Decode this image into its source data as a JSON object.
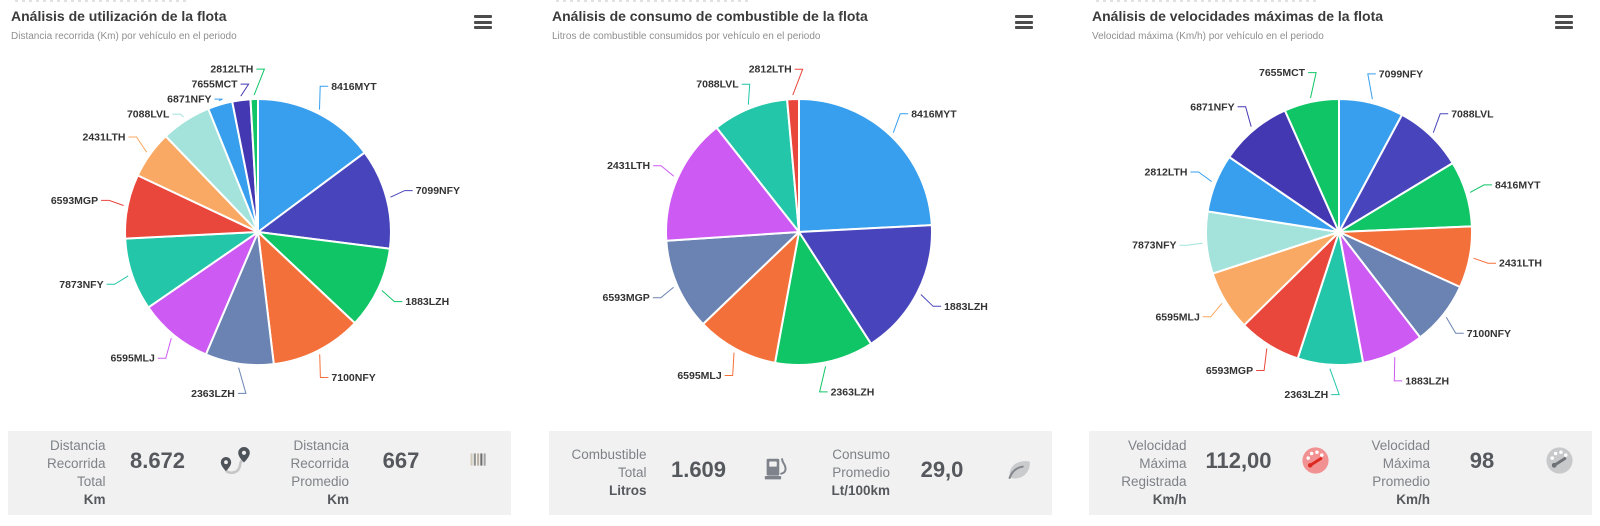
{
  "chart_data": [
    {
      "type": "pie",
      "title": "Análisis de utilización de la flota",
      "subtitle": "Distancia recorrida (Km) por vehículo en el periodo",
      "unit": "Km",
      "legend": false,
      "labels": [
        "8416MYT",
        "7099NFY",
        "1883LZH",
        "7100NFY",
        "2363LZH",
        "6595MLJ",
        "7873NFY",
        "6593MGP",
        "2431LTH",
        "7088LVL",
        "6871NFY",
        "7655MCT",
        "2812LTH"
      ],
      "values": [
        1285,
        1058,
        867,
        962,
        720,
        780,
        763,
        676,
        503,
        529,
        260,
        191,
        78
      ],
      "colors": [
        "#379FED",
        "#4845BC",
        "#10C565",
        "#F4703A",
        "#6A83B2",
        "#CD5AF2",
        "#23C6A8",
        "#E9463C",
        "#F9A963",
        "#A3E3DB",
        "#379FED",
        "#4338B2",
        "#10C565"
      ],
      "total": 8672
    },
    {
      "type": "pie",
      "title": "Análisis de consumo de combustible de la flota",
      "subtitle": "Litros de combustible consumidos por vehículo en el periodo",
      "unit": "Litros",
      "legend": false,
      "labels": [
        "8416MYT",
        "1883LZH",
        "2363LZH",
        "6595MLJ",
        "6593MGP",
        "2431LTH",
        "7088LVL",
        "2812LTH"
      ],
      "values": [
        389,
        269,
        193,
        160,
        179,
        248,
        148,
        23
      ],
      "colors": [
        "#379FED",
        "#4845BC",
        "#10C565",
        "#F4703A",
        "#6A83B2",
        "#CD5AF2",
        "#23C6A8",
        "#E9463C"
      ],
      "total": 1609
    },
    {
      "type": "pie",
      "title": "Análisis de velocidades máximas de la flota",
      "subtitle": "Velocidad máxima (Km/h) por vehículo en el periodo",
      "unit": "Km/h",
      "legend": false,
      "labels": [
        "7099NFY",
        "7088LVL",
        "8416MYT",
        "2431LTH",
        "7100NFY",
        "1883LZH",
        "2363LZH",
        "6593MGP",
        "6595MLJ",
        "7873NFY",
        "2812LTH",
        "6871NFY",
        "7655MCT"
      ],
      "values": [
        100,
        108,
        102,
        95,
        99,
        96,
        101,
        97,
        93,
        96,
        90,
        112,
        85
      ],
      "colors": [
        "#379FED",
        "#4845BC",
        "#10C565",
        "#F4703A",
        "#6A83B2",
        "#CD5AF2",
        "#23C6A8",
        "#E9463C",
        "#F9A963",
        "#A3E3DB",
        "#379FED",
        "#4338B2",
        "#10C565"
      ]
    }
  ],
  "cards": [
    {
      "title": "Análisis de utilización de la flota",
      "subtitle": "Distancia recorrida (Km) por vehículo en el periodo",
      "footer": {
        "stats": [
          {
            "label_lines": [
              "Distancia",
              "Recorrida",
              "Total"
            ],
            "unit": "Km",
            "value": "8.672",
            "icon": "route-icon"
          },
          {
            "label_lines": [
              "Distancia",
              "Recorrida",
              "Promedio"
            ],
            "unit": "Km",
            "value": "667",
            "icon": "distance-bars-icon"
          }
        ]
      }
    },
    {
      "title": "Análisis de consumo de combustible de la flota",
      "subtitle": "Litros de combustible consumidos por vehículo en el periodo",
      "footer": {
        "stats": [
          {
            "label_lines": [
              "Combustible",
              "Total"
            ],
            "unit": "Litros",
            "value": "1.609",
            "icon": "fuel-pump-icon"
          },
          {
            "label_lines": [
              "Consumo",
              "Promedio"
            ],
            "unit": "Lt/100km",
            "value": "29,0",
            "icon": "leaf-icon"
          }
        ]
      }
    },
    {
      "title": "Análisis de velocidades máximas de la flota",
      "subtitle": "Velocidad máxima (Km/h) por vehículo en el periodo",
      "footer": {
        "stats": [
          {
            "label_lines": [
              "Velocidad",
              "Máxima",
              "Registrada"
            ],
            "unit": "Km/h",
            "value": "112,00",
            "icon": "speedometer-max-icon"
          },
          {
            "label_lines": [
              "Velocidad",
              "Máxima",
              "Promedio"
            ],
            "unit": "Km/h",
            "value": "98",
            "icon": "speedometer-avg-icon"
          }
        ]
      }
    }
  ]
}
